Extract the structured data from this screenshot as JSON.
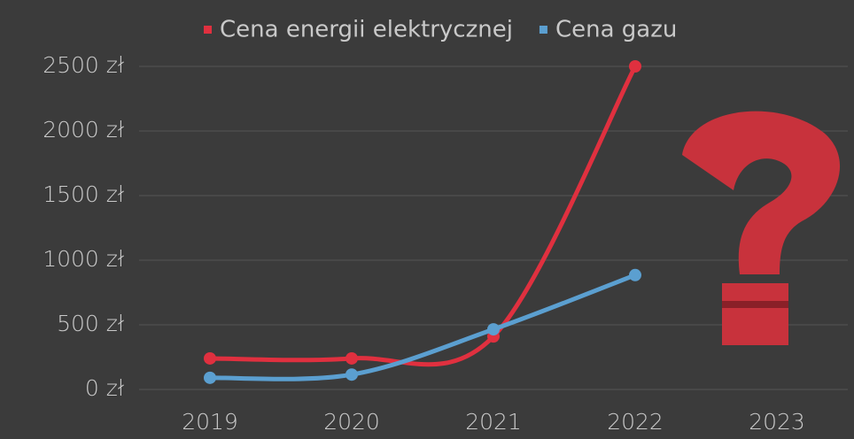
{
  "chart_data": {
    "type": "line",
    "categories": [
      "2019",
      "2020",
      "2021",
      "2022",
      "2023"
    ],
    "series": [
      {
        "name": "Cena energii elektrycznej",
        "color": "#e0303f",
        "values": [
          240,
          240,
          410,
          2500,
          null
        ]
      },
      {
        "name": "Cena gazu",
        "color": "#5b9fd0",
        "values": [
          90,
          115,
          465,
          885,
          null
        ]
      }
    ],
    "ylim": [
      0,
      2500
    ],
    "yticks": [
      {
        "value": 0,
        "label": "0 zł"
      },
      {
        "value": 500,
        "label": "500 zł"
      },
      {
        "value": 1000,
        "label": "1000 zł"
      },
      {
        "value": 1500,
        "label": "1500 zł"
      },
      {
        "value": 2000,
        "label": "2000 zł"
      },
      {
        "value": 2500,
        "label": "2500 zł"
      }
    ],
    "grid": true,
    "legend": "top"
  }
}
